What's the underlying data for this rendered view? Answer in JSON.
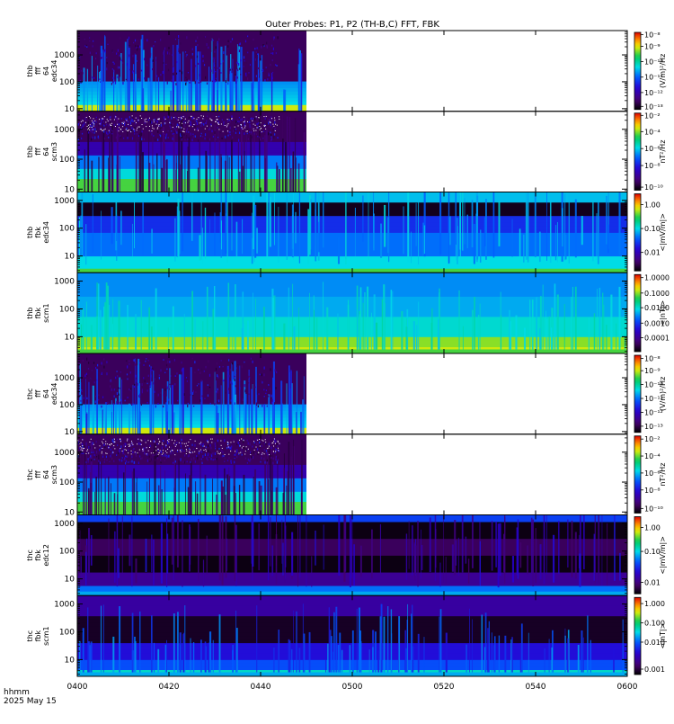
{
  "title": "Outer Probes: P1, P2 (TH-B,C) FFT, FBK",
  "time_axis": {
    "tick_labels": [
      "0400",
      "0420",
      "0440",
      "0500",
      "0520",
      "0540",
      "0600"
    ],
    "units_label": "hhmm",
    "date_label": "2025 May 15"
  },
  "chart_data": {
    "type": "heatmap",
    "x_range": [
      "04:00",
      "06:00"
    ],
    "y_scale": "log",
    "data_end_fff": "04:50",
    "panels": [
      {
        "id": "thb-fff-e34",
        "label": [
          "thb",
          "fff",
          "64",
          "edc34"
        ],
        "y_ticks": [
          {
            "v": 10,
            "t": "10"
          },
          {
            "v": 100,
            "t": "100"
          },
          {
            "v": 1000,
            "t": "1000"
          }
        ],
        "ylim": [
          8,
          8000
        ],
        "zunit": "(V/m)²/Hz",
        "cb_ticks": [
          {
            "t": "10⁻⁸",
            "f": 0.97
          },
          {
            "t": "10⁻⁹",
            "f": 0.82
          },
          {
            "t": "10⁻¹⁰",
            "f": 0.62
          },
          {
            "t": "10⁻¹¹",
            "f": 0.42
          },
          {
            "t": "10⁻¹²",
            "f": 0.22
          },
          {
            "t": "10⁻¹³",
            "f": 0.04
          }
        ],
        "cover_end": "04:50",
        "style": "fffE"
      },
      {
        "id": "thb-fff-s3",
        "label": [
          "thb",
          "fff",
          "64",
          "scm3"
        ],
        "y_ticks": [
          {
            "v": 10,
            "t": "10"
          },
          {
            "v": 100,
            "t": "100"
          },
          {
            "v": 1000,
            "t": "1000"
          }
        ],
        "ylim": [
          8,
          4000
        ],
        "zunit": "nT²/Hz",
        "cb_ticks": [
          {
            "t": "10⁻²",
            "f": 0.97
          },
          {
            "t": "10⁻⁴",
            "f": 0.76
          },
          {
            "t": "10⁻⁶",
            "f": 0.54
          },
          {
            "t": "10⁻⁸",
            "f": 0.32
          },
          {
            "t": "10⁻¹⁰",
            "f": 0.04
          }
        ],
        "cover_end": "04:50",
        "style": "fffS"
      },
      {
        "id": "thb-fbk-e34",
        "label": [
          "thb",
          "fbk",
          "edc34"
        ],
        "y_ticks": [
          {
            "v": 10,
            "t": "10"
          },
          {
            "v": 100,
            "t": "100"
          },
          {
            "v": 1000,
            "t": "1000"
          }
        ],
        "ylim": [
          2.5,
          2000
        ],
        "zunit": "<|mV/m|>",
        "cb_ticks": [
          {
            "t": "1.00",
            "f": 0.86
          },
          {
            "t": "0.10",
            "f": 0.55
          },
          {
            "t": "0.01",
            "f": 0.24
          }
        ],
        "cover_end": "06:00",
        "style": "fbkE_b"
      },
      {
        "id": "thb-fbk-s1",
        "label": [
          "thb",
          "fbk",
          "scm1"
        ],
        "y_ticks": [
          {
            "v": 10,
            "t": "10"
          },
          {
            "v": 100,
            "t": "100"
          },
          {
            "v": 1000,
            "t": "1000"
          }
        ],
        "ylim": [
          2.5,
          2000
        ],
        "zunit": "<|nT|>",
        "cb_ticks": [
          {
            "t": "1.0000",
            "f": 0.96
          },
          {
            "t": "0.1000",
            "f": 0.76
          },
          {
            "t": "0.0100",
            "f": 0.57
          },
          {
            "t": "0.0010",
            "f": 0.37
          },
          {
            "t": "0.0001",
            "f": 0.18
          }
        ],
        "cover_end": "06:00",
        "style": "fbkS_b"
      },
      {
        "id": "thc-fff-e34",
        "label": [
          "thc",
          "fff",
          "64",
          "edc34"
        ],
        "y_ticks": [
          {
            "v": 10,
            "t": "10"
          },
          {
            "v": 100,
            "t": "100"
          },
          {
            "v": 1000,
            "t": "1000"
          }
        ],
        "ylim": [
          8,
          8000
        ],
        "zunit": "(V/m)²/Hz",
        "cb_ticks": [
          {
            "t": "10⁻⁸",
            "f": 0.96
          },
          {
            "t": "10⁻⁹",
            "f": 0.8
          },
          {
            "t": "10⁻¹⁰",
            "f": 0.62
          },
          {
            "t": "10⁻¹¹",
            "f": 0.44
          },
          {
            "t": "10⁻¹²",
            "f": 0.26
          },
          {
            "t": "10⁻¹³",
            "f": 0.08
          }
        ],
        "cover_end": "04:50",
        "style": "fffE"
      },
      {
        "id": "thc-fff-s3",
        "label": [
          "thc",
          "fff",
          "64",
          "scm3"
        ],
        "y_ticks": [
          {
            "v": 10,
            "t": "10"
          },
          {
            "v": 100,
            "t": "100"
          },
          {
            "v": 1000,
            "t": "1000"
          }
        ],
        "ylim": [
          8,
          4000
        ],
        "zunit": "nT²/Hz",
        "cb_ticks": [
          {
            "t": "10⁻²",
            "f": 0.96
          },
          {
            "t": "10⁻⁴",
            "f": 0.74
          },
          {
            "t": "10⁻⁶",
            "f": 0.52
          },
          {
            "t": "10⁻⁸",
            "f": 0.3
          },
          {
            "t": "10⁻¹⁰",
            "f": 0.06
          }
        ],
        "cover_end": "04:50",
        "style": "fffS"
      },
      {
        "id": "thc-fbk-e12",
        "label": [
          "thc",
          "fbk",
          "edc12"
        ],
        "y_ticks": [
          {
            "v": 10,
            "t": "10"
          },
          {
            "v": 100,
            "t": "100"
          },
          {
            "v": 1000,
            "t": "1000"
          }
        ],
        "ylim": [
          2.5,
          2000
        ],
        "zunit": "<|mV/m|>",
        "cb_ticks": [
          {
            "t": "1.00",
            "f": 0.86
          },
          {
            "t": "0.10",
            "f": 0.55
          },
          {
            "t": "0.01",
            "f": 0.15
          }
        ],
        "cover_end": "06:00",
        "style": "fbkE_c"
      },
      {
        "id": "thc-fbk-s1",
        "label": [
          "thc",
          "fbk",
          "scm1"
        ],
        "y_ticks": [
          {
            "v": 10,
            "t": "10"
          },
          {
            "v": 100,
            "t": "100"
          },
          {
            "v": 1000,
            "t": "1000"
          }
        ],
        "ylim": [
          2.5,
          2000
        ],
        "zunit": "<|nT|>",
        "cb_ticks": [
          {
            "t": "1.000",
            "f": 0.92
          },
          {
            "t": "0.100",
            "f": 0.67
          },
          {
            "t": "0.010",
            "f": 0.42
          },
          {
            "t": "0.001",
            "f": 0.07
          }
        ],
        "cover_end": "06:00",
        "style": "fbkS_c"
      }
    ]
  }
}
